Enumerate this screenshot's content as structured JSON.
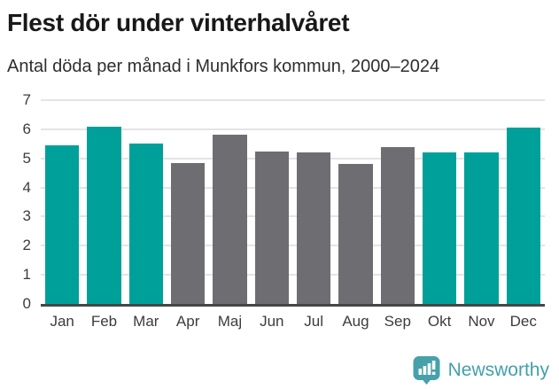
{
  "header": {
    "title": "Flest dör under vinterhalvåret",
    "subtitle": "Antal döda per månad i Munkfors kommun, 2000–2024"
  },
  "chart_data": {
    "type": "bar",
    "title": "Flest dör under vinterhalvåret",
    "subtitle": "Antal döda per månad i Munkfors kommun, 2000–2024",
    "categories": [
      "Jan",
      "Feb",
      "Mar",
      "Apr",
      "Maj",
      "Jun",
      "Jul",
      "Aug",
      "Sep",
      "Okt",
      "Nov",
      "Dec"
    ],
    "values": [
      5.45,
      6.1,
      5.5,
      4.85,
      5.8,
      5.25,
      5.2,
      4.8,
      5.4,
      5.2,
      5.2,
      6.05
    ],
    "bar_colors": [
      "#00A09A",
      "#00A09A",
      "#00A09A",
      "#6E6E72",
      "#6E6E72",
      "#6E6E72",
      "#6E6E72",
      "#6E6E72",
      "#6E6E72",
      "#00A09A",
      "#00A09A",
      "#00A09A"
    ],
    "highlight_color": "#00A09A",
    "base_color": "#6E6E72",
    "xlabel": "",
    "ylabel": "",
    "ylim": [
      0,
      7
    ],
    "yticks": [
      0,
      1,
      2,
      3,
      4,
      5,
      6,
      7
    ],
    "grid": "horizontal",
    "legend": "none"
  },
  "footer": {
    "brand": "Newsworthy",
    "logo_icon": "bar-chart-speech-bubble-icon",
    "logo_color": "#46a1aa"
  }
}
